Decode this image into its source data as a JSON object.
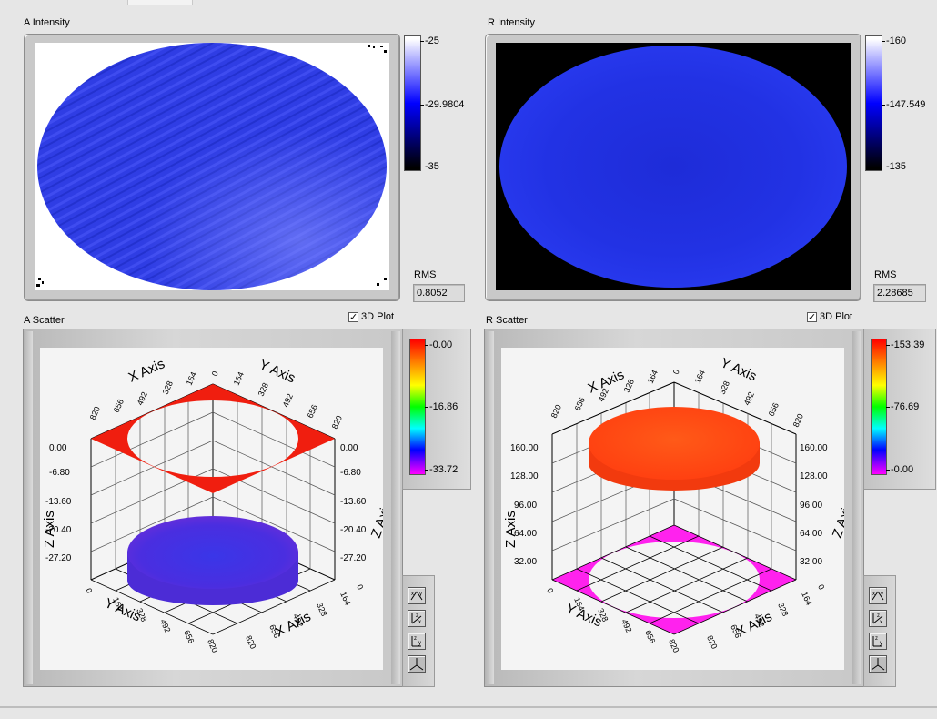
{
  "panels": {
    "a_intensity": {
      "title": "A Intensity",
      "scale_ticks": [
        "-25",
        "-29.9804",
        "-35"
      ],
      "rms_label": "RMS",
      "rms_value": "0.8052"
    },
    "r_intensity": {
      "title": "R Intensity",
      "scale_ticks": [
        "-160",
        "-147.549",
        "-135"
      ],
      "rms_label": "RMS",
      "rms_value": "2.28685"
    },
    "a_scatter": {
      "title": "A Scatter",
      "plot3d_label": "3D Plot",
      "plot3d_checked": true,
      "scale_ticks": [
        "-0.00",
        "-16.86",
        "-33.72"
      ],
      "axes": {
        "x": "X Axis",
        "y": "Y Axis",
        "z": "Z Axis",
        "xy_ticks": [
          "0",
          "164",
          "328",
          "492",
          "656",
          "820"
        ],
        "z_ticks": [
          "0.00",
          "-6.80",
          "-13.60",
          "-20.40",
          "-27.20"
        ]
      }
    },
    "r_scatter": {
      "title": "R Scatter",
      "plot3d_label": "3D Plot",
      "plot3d_checked": true,
      "scale_ticks": [
        "-153.39",
        "-76.69",
        "-0.00"
      ],
      "axes": {
        "x": "X Axis",
        "y": "Y Axis",
        "z": "Z Axis",
        "xy_ticks": [
          "0",
          "164",
          "328",
          "492",
          "656",
          "820"
        ],
        "z_ticks": [
          "160.00",
          "128.00",
          "96.00",
          "64.00",
          "32.00"
        ]
      }
    }
  },
  "colors": {
    "background": "#e6e6e6",
    "a_ellipse": "#2b3ae0",
    "r_ellipse": "#1f2ee8",
    "a_projection": "#f01e0f",
    "a_cloud": "#4a2ee0",
    "r_cloud": "#ff4a12",
    "r_projection": "#ff22ee",
    "intensity_scale": [
      "#ffffff",
      "#0000ff",
      "#000000"
    ],
    "rainbow_scale": [
      "#ff0000",
      "#ff8800",
      "#ffff00",
      "#00ff00",
      "#00ffff",
      "#0000ff",
      "#ff00ff"
    ]
  },
  "view_buttons": [
    "xy-plane-view-icon",
    "xz-plane-view-icon",
    "yz-plane-view-icon",
    "default-3d-view-icon"
  ]
}
